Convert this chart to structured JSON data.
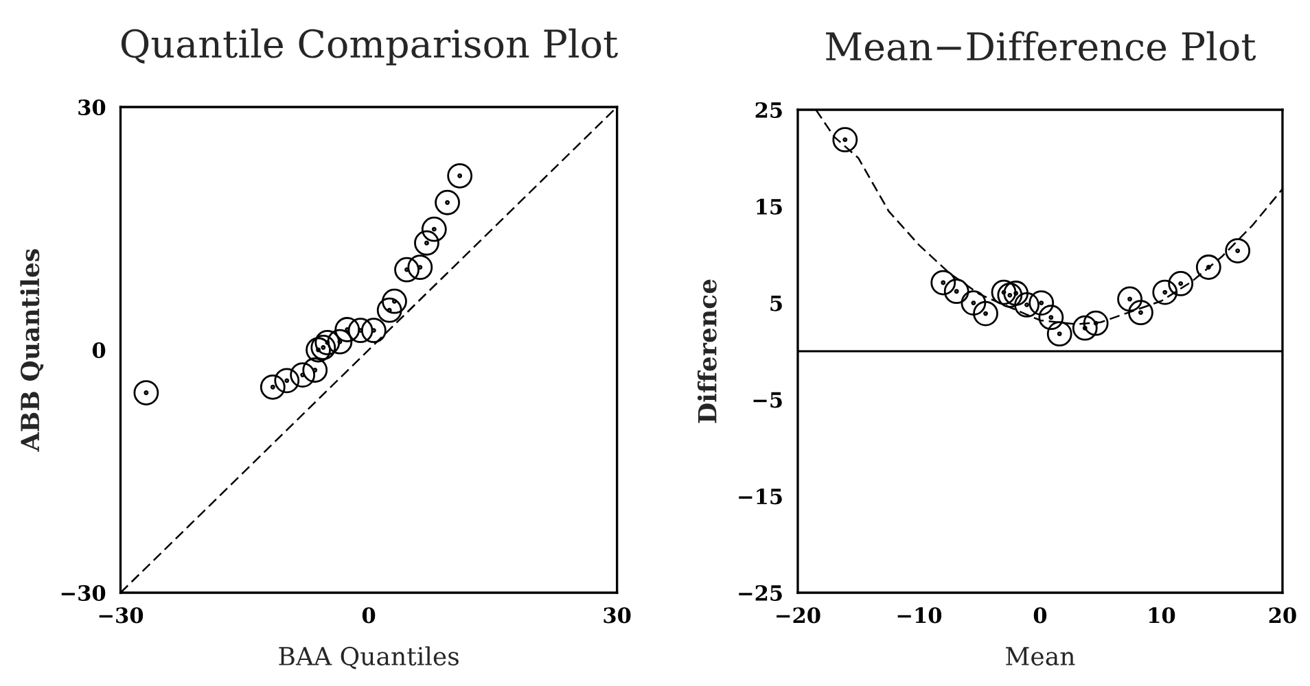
{
  "chart_data": [
    {
      "type": "scatter",
      "title": "Quantile Comparison Plot",
      "xlabel": "BAA Quantiles",
      "ylabel": "ABB Quantiles",
      "xlim": [
        -30,
        30
      ],
      "ylim": [
        -30,
        30
      ],
      "xticks": [
        -30,
        0,
        30
      ],
      "yticks": [
        -30,
        0,
        30
      ],
      "grid": false,
      "series": [
        {
          "marker": "circle",
          "color": "#000000",
          "x": [
            -26.9,
            -11.6,
            -9.9,
            -8.0,
            -6.5,
            -6.1,
            -5.5,
            -5.0,
            -3.5,
            -2.6,
            -1.0,
            0.6,
            2.5,
            3.1,
            4.6,
            6.2,
            7.0,
            7.9,
            9.5,
            11.0
          ],
          "values": [
            -5.3,
            -4.6,
            -3.8,
            -3.1,
            -2.5,
            0.0,
            0.3,
            0.9,
            1.0,
            2.5,
            2.4,
            2.4,
            4.9,
            6.0,
            9.9,
            10.2,
            13.2,
            14.9,
            18.2,
            21.5
          ]
        },
        {
          "type": "line",
          "color": "#000000",
          "line_style": "dashed",
          "x": [
            -30,
            30
          ],
          "values": [
            -30,
            30
          ]
        }
      ]
    },
    {
      "type": "scatter",
      "title": "Mean−Difference Plot",
      "xlabel": "Mean",
      "ylabel": "Difference",
      "xlim": [
        -20,
        20
      ],
      "ylim": [
        -25,
        25
      ],
      "xticks": [
        -20,
        -10,
        0,
        10,
        20
      ],
      "yticks": [
        -25,
        -15,
        -5,
        5,
        15,
        25
      ],
      "grid": false,
      "series": [
        {
          "marker": "circle",
          "color": "#000000",
          "x": [
            -16.1,
            -8.0,
            -6.9,
            -5.5,
            -4.5,
            -3.0,
            -2.5,
            -2.0,
            -1.1,
            0.1,
            0.9,
            1.6,
            3.7,
            4.6,
            7.4,
            8.3,
            10.3,
            11.6,
            13.9,
            16.3
          ],
          "values": [
            21.9,
            7.1,
            6.2,
            5.0,
            3.9,
            6.1,
            5.8,
            6.0,
            4.8,
            5.0,
            3.5,
            1.8,
            2.4,
            2.9,
            5.4,
            4.0,
            6.1,
            7.0,
            8.7,
            10.4
          ]
        },
        {
          "type": "line",
          "color": "#000000",
          "line_style": "dashed",
          "x": [
            -18.5,
            -17,
            -15,
            -12.5,
            -10,
            -7.5,
            -5,
            0,
            3,
            5,
            10,
            12.5,
            15,
            17.5,
            20
          ],
          "values": [
            25,
            22.2,
            20,
            14.5,
            11,
            8.1,
            5.9,
            3.2,
            2.8,
            3,
            5.2,
            7.2,
            9.8,
            13,
            16.8
          ]
        }
      ],
      "ref_lines": [
        {
          "axis": "y",
          "value": 0,
          "color": "#000000",
          "line_style": "solid"
        }
      ]
    }
  ]
}
